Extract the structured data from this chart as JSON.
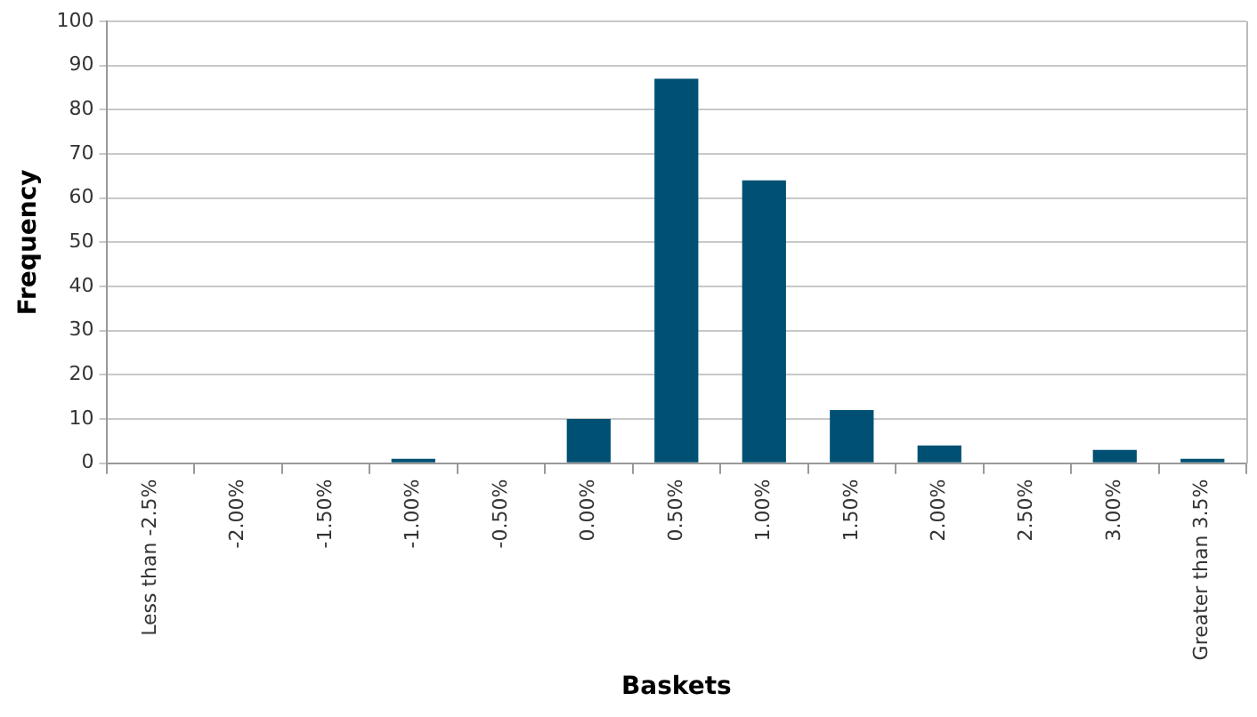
{
  "chart_data": {
    "type": "bar",
    "xlabel": "Baskets",
    "ylabel": "Frequency",
    "categories": [
      "Less than -2.5%",
      "-2.00%",
      "-1.50%",
      "-1.00%",
      "-0.50%",
      "0.00%",
      "0.50%",
      "1.00%",
      "1.50%",
      "2.00%",
      "2.50%",
      "3.00%",
      "Greater than 3.5%"
    ],
    "values": [
      0,
      0,
      0,
      1,
      0,
      10,
      87,
      64,
      12,
      4,
      0,
      3,
      1
    ],
    "color": "#005073",
    "ylim": [
      0,
      100
    ],
    "yticks": [
      0,
      10,
      20,
      30,
      40,
      50,
      60,
      70,
      80,
      90,
      100
    ],
    "grid": "y",
    "legend": false
  }
}
